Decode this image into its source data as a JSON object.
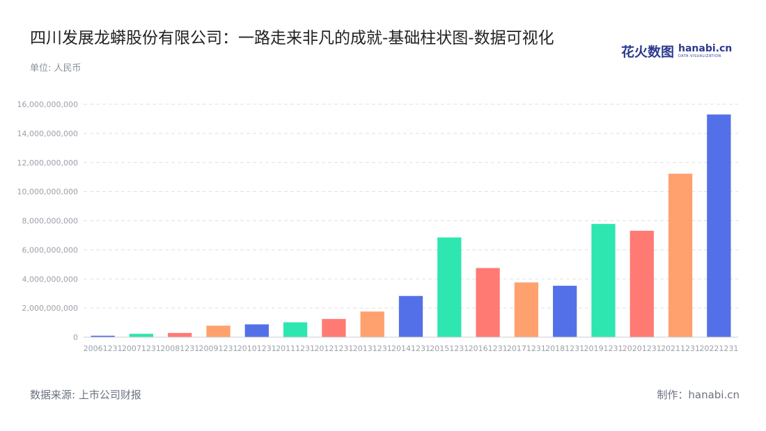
{
  "header": {
    "title": "四川发展龙蟒股份有限公司：一路走来非凡的成就-基础柱状图-数据可视化",
    "unit": "单位: 人民币"
  },
  "logo": {
    "cn": "花火数图",
    "en": "hanabi.cn",
    "en_sub": "DATA VISUALIZATION"
  },
  "footer": {
    "source": "数据来源: 上市公司财报",
    "maker": "制作：hanabi.cn"
  },
  "chart_data": {
    "type": "bar",
    "title": "四川发展龙蟒股份有限公司：一路走来非凡的成就-基础柱状图-数据可视化",
    "categories": [
      "20061231",
      "20071231",
      "20081231",
      "20091231",
      "20101231",
      "20111231",
      "20121231",
      "20131231",
      "20141231",
      "20151231",
      "20161231",
      "20171231",
      "20181231",
      "20191231",
      "20201231",
      "20211231",
      "20221231"
    ],
    "values": [
      100000000,
      230000000,
      290000000,
      790000000,
      880000000,
      1020000000,
      1250000000,
      1760000000,
      2830000000,
      6850000000,
      4750000000,
      3760000000,
      3530000000,
      7780000000,
      7310000000,
      11230000000,
      15300000000
    ],
    "yticks": [
      "0",
      "2,000,000,000",
      "4,000,000,000",
      "6,000,000,000",
      "8,000,000,000",
      "10,000,000,000",
      "12,000,000,000",
      "14,000,000,000",
      "16,000,000,000"
    ],
    "ylim": [
      0,
      16000000000
    ],
    "grid": true,
    "palette": [
      "#5470e8",
      "#2ee6b0",
      "#ff7a73",
      "#ffa16f"
    ]
  }
}
